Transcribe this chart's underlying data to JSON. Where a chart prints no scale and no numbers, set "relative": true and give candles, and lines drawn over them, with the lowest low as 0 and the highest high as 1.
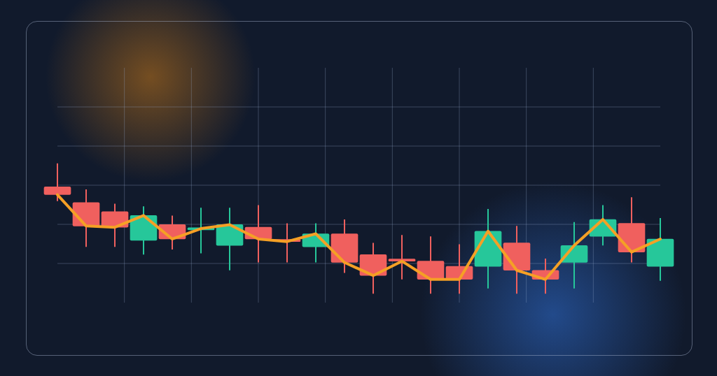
{
  "chart_data": {
    "type": "candlestick",
    "relative": true,
    "grid": true,
    "categories": [
      null,
      null,
      null,
      null,
      null,
      null,
      null,
      null,
      null,
      null,
      null,
      null,
      null,
      null,
      null,
      null,
      null,
      null,
      null,
      null,
      null,
      null
    ],
    "ohlc": [
      [
        0.82,
        1.0,
        0.71,
        0.76
      ],
      [
        0.7,
        0.8,
        0.36,
        0.52
      ],
      [
        0.63,
        0.69,
        0.36,
        0.51
      ],
      [
        0.41,
        0.67,
        0.3,
        0.6
      ],
      [
        0.53,
        0.6,
        0.34,
        0.42
      ],
      [
        0.49,
        0.66,
        0.31,
        0.5
      ],
      [
        0.37,
        0.66,
        0.18,
        0.53
      ],
      [
        0.51,
        0.68,
        0.24,
        0.42
      ],
      [
        0.41,
        0.54,
        0.24,
        0.4
      ],
      [
        0.36,
        0.54,
        0.24,
        0.46
      ],
      [
        0.46,
        0.57,
        0.16,
        0.24
      ],
      [
        0.3,
        0.39,
        0.0,
        0.14
      ],
      [
        0.26,
        0.45,
        0.11,
        0.25
      ],
      [
        0.25,
        0.44,
        0.0,
        0.11
      ],
      [
        0.21,
        0.38,
        0.0,
        0.11
      ],
      [
        0.21,
        0.65,
        0.04,
        0.48
      ],
      [
        0.39,
        0.52,
        0.0,
        0.18
      ],
      [
        0.18,
        0.27,
        0.0,
        0.11
      ],
      [
        0.24,
        0.55,
        0.04,
        0.37
      ],
      [
        0.44,
        0.68,
        0.37,
        0.57
      ],
      [
        0.54,
        0.74,
        0.24,
        0.32
      ],
      [
        0.21,
        0.58,
        0.1,
        0.42
      ]
    ],
    "colors": [
      "#f0605e",
      "#f0605e",
      "#f0605e",
      "#26c79a",
      "#f0605e",
      "#26c79a",
      "#26c79a",
      "#f0605e",
      "#f0605e",
      "#26c79a",
      "#f0605e",
      "#f0605e",
      "#f0605e",
      "#f0605e",
      "#f0605e",
      "#26c79a",
      "#f0605e",
      "#f0605e",
      "#26c79a",
      "#26c79a",
      "#f0605e",
      "#26c79a"
    ],
    "series": [
      {
        "type": "line",
        "color": "#f5a025",
        "values": [
          0.76,
          0.52,
          0.51,
          0.6,
          0.42,
          0.5,
          0.53,
          0.42,
          0.4,
          0.46,
          0.24,
          0.14,
          0.25,
          0.11,
          0.11,
          0.48,
          0.18,
          0.11,
          0.37,
          0.57,
          0.32,
          0.42
        ]
      }
    ]
  }
}
